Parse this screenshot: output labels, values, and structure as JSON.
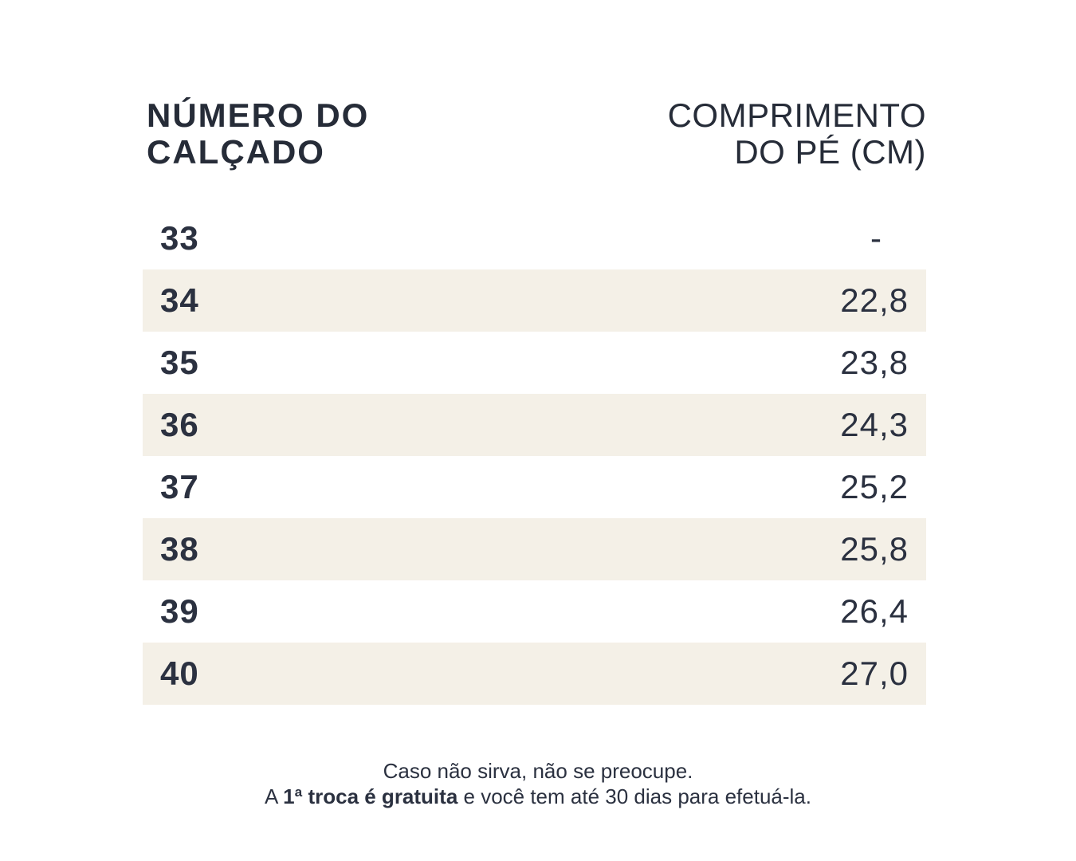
{
  "page": {
    "background_color": "#ffffff",
    "text_color": "#2b3140",
    "row_shade_color": "#f4f0e7"
  },
  "table": {
    "headers": {
      "shoe_number": {
        "line1": "NÚMERO DO",
        "line2": "CALÇADO"
      },
      "foot_length": {
        "line1": "COMPRIMENTO",
        "line2": "DO PÉ (CM)"
      }
    },
    "rows": [
      {
        "size": "33",
        "length": "-"
      },
      {
        "size": "34",
        "length": "22,8"
      },
      {
        "size": "35",
        "length": "23,8"
      },
      {
        "size": "36",
        "length": "24,3"
      },
      {
        "size": "37",
        "length": "25,2"
      },
      {
        "size": "38",
        "length": "25,8"
      },
      {
        "size": "39",
        "length": "26,4"
      },
      {
        "size": "40",
        "length": "27,0"
      }
    ]
  },
  "footer": {
    "line1": "Caso não sirva, não se preocupe.",
    "line2_prefix": "A ",
    "line2_bold": "1ª troca é gratuita",
    "line2_suffix": " e você tem até 30 dias para efetuá-la."
  },
  "chart_data": {
    "type": "table",
    "title": "",
    "columns": [
      "NÚMERO DO CALÇADO",
      "COMPRIMENTO DO PÉ (CM)"
    ],
    "rows": [
      [
        "33",
        "-"
      ],
      [
        "34",
        "22,8"
      ],
      [
        "35",
        "23,8"
      ],
      [
        "36",
        "24,3"
      ],
      [
        "37",
        "25,2"
      ],
      [
        "38",
        "25,8"
      ],
      [
        "39",
        "26,4"
      ],
      [
        "40",
        "27,0"
      ]
    ],
    "notes": "Zebra-striped size chart; even rows shaded cream #f4f0e7; sizes bold left-aligned, lengths light right-aligned"
  }
}
